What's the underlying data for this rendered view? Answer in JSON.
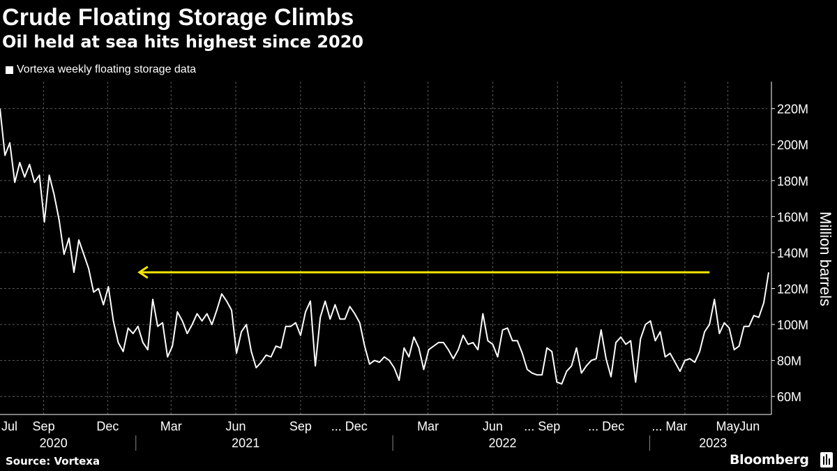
{
  "header": {
    "title": "Crude Floating Storage Climbs",
    "subtitle": "Oil held at sea hits highest since 2020"
  },
  "legend": {
    "label": "Vortexa weekly floating storage data"
  },
  "footer": {
    "source": "Source: Vortexa",
    "brand": "Bloomberg",
    "brand_icon": "bloomberg-terminal-icon"
  },
  "colors": {
    "background": "#000000",
    "line": "#ffffff",
    "arrow": "#f2e600",
    "grid": "#5a5a5a"
  },
  "chart_data": {
    "type": "line",
    "title": "Crude Floating Storage Climbs",
    "subtitle": "Oil held at sea hits highest since 2020",
    "ylabel": "Million barrels",
    "ylim": [
      50,
      235
    ],
    "y_ticks": [
      "220M",
      "200M",
      "180M",
      "160M",
      "140M",
      "120M",
      "100M",
      "80M",
      "60M"
    ],
    "y_tick_values": [
      220,
      200,
      180,
      160,
      140,
      120,
      100,
      80,
      60
    ],
    "x_range": [
      "2020-07-01",
      "2023-06-26"
    ],
    "x_ticks": [
      {
        "label": "Jul",
        "date": "2020-07-01"
      },
      {
        "label": "Sep",
        "date": "2020-09-01"
      },
      {
        "label": "Dec",
        "date": "2020-12-01"
      },
      {
        "label": "Mar",
        "date": "2021-03-01"
      },
      {
        "label": "Jun",
        "date": "2021-06-01"
      },
      {
        "label": "Sep",
        "date": "2021-09-01"
      },
      {
        "label": "... Dec",
        "date": "2021-12-01"
      },
      {
        "label": "Mar",
        "date": "2022-03-01"
      },
      {
        "label": "Jun",
        "date": "2022-06-01"
      },
      {
        "label": "... Sep",
        "date": "2022-09-01"
      },
      {
        "label": "... Dec",
        "date": "2022-12-01"
      },
      {
        "label": "... Mar",
        "date": "2023-03-01"
      },
      {
        "label": "May",
        "date": "2023-05-01"
      },
      {
        "label": "Jun",
        "date": "2023-06-01"
      }
    ],
    "x_grid_dates": [
      "2020-09-01",
      "2020-12-01",
      "2021-03-01",
      "2021-06-01",
      "2021-09-01",
      "2021-12-01",
      "2022-03-01",
      "2022-06-01",
      "2022-09-01",
      "2022-12-01",
      "2023-03-01",
      "2023-05-01"
    ],
    "year_labels": [
      {
        "label": "2020",
        "date": "2020-09-15"
      },
      {
        "label": "2021",
        "date": "2021-06-15"
      },
      {
        "label": "2022",
        "date": "2022-06-15"
      },
      {
        "label": "2023",
        "date": "2023-04-10"
      }
    ],
    "year_dividers": [
      "2021-01-10",
      "2022-01-10",
      "2023-01-10"
    ],
    "annotation": {
      "type": "arrow",
      "value": 129,
      "from_date": "2023-04-05",
      "to_date": "2021-01-15"
    },
    "grid": true,
    "legend_position": "top-left",
    "series": [
      {
        "name": "Vortexa weekly floating storage data",
        "start_date": "2020-07-01",
        "interval_days": 7,
        "values": [
          220,
          194,
          201,
          179,
          190,
          182,
          189,
          179,
          183,
          157,
          183,
          172,
          158,
          139,
          148,
          129,
          147,
          139,
          131,
          118,
          120,
          111,
          121,
          102,
          90,
          85,
          98,
          95,
          99,
          90,
          86,
          114,
          99,
          101,
          82,
          88,
          107,
          102,
          95,
          100,
          106,
          102,
          106,
          100,
          108,
          117,
          113,
          108,
          84,
          96,
          100,
          85,
          76,
          79,
          83,
          82,
          88,
          87,
          99,
          99,
          101,
          94,
          107,
          113,
          77,
          104,
          113,
          103,
          111,
          103,
          103,
          110,
          106,
          101,
          88,
          78,
          80,
          79,
          82,
          80,
          76,
          69,
          87,
          82,
          93,
          87,
          75,
          86,
          88,
          90,
          90,
          86,
          81,
          86,
          94,
          89,
          90,
          86,
          106,
          91,
          89,
          82,
          97,
          98,
          91,
          91,
          84,
          75,
          73,
          72,
          72,
          87,
          85,
          68,
          67,
          74,
          77,
          87,
          73,
          77,
          80,
          81,
          97,
          81,
          71,
          90,
          93,
          89,
          91,
          68,
          92,
          100,
          102,
          91,
          96,
          82,
          84,
          79,
          74,
          80,
          81,
          79,
          85,
          96,
          100,
          114,
          95,
          101,
          98,
          86,
          88,
          99,
          99,
          105,
          104,
          112,
          129
        ]
      }
    ]
  }
}
